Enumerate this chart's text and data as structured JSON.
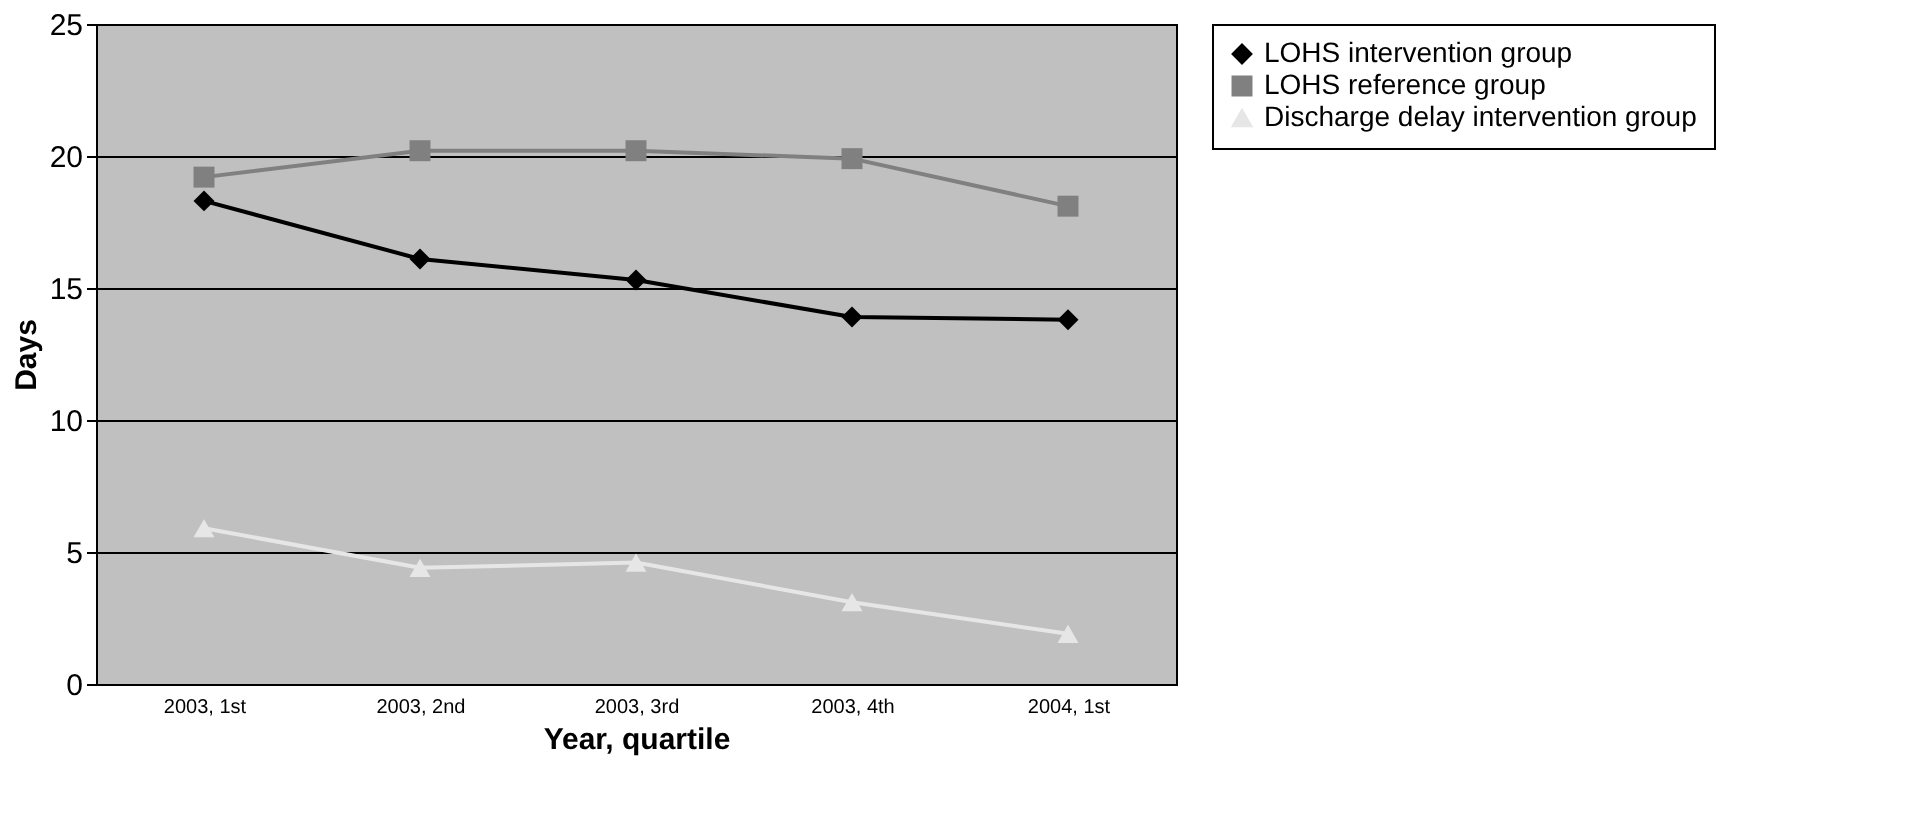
{
  "chart_data": {
    "type": "line",
    "xlabel": "Year, quartile",
    "ylabel": "Days",
    "categories": [
      "2003, 1st",
      "2003, 2nd",
      "2003, 3rd",
      "2003, 4th",
      "2004, 1st"
    ],
    "series": [
      {
        "name": "LOHS intervention group",
        "color": "#000000",
        "marker": "diamond",
        "values": [
          18.3,
          16.1,
          15.3,
          13.9,
          13.8
        ]
      },
      {
        "name": "LOHS reference group",
        "color": "#808080",
        "marker": "square",
        "values": [
          19.2,
          20.2,
          20.2,
          19.9,
          18.1
        ]
      },
      {
        "name": "Discharge delay intervention group",
        "color": "#e6e6e6",
        "marker": "triangle",
        "values": [
          5.9,
          4.4,
          4.6,
          3.1,
          1.9
        ]
      }
    ],
    "ylim": [
      0,
      25
    ],
    "yticks": [
      0,
      5,
      10,
      15,
      20,
      25
    ],
    "grid": "y",
    "legend": "right",
    "line_style": "solid"
  }
}
